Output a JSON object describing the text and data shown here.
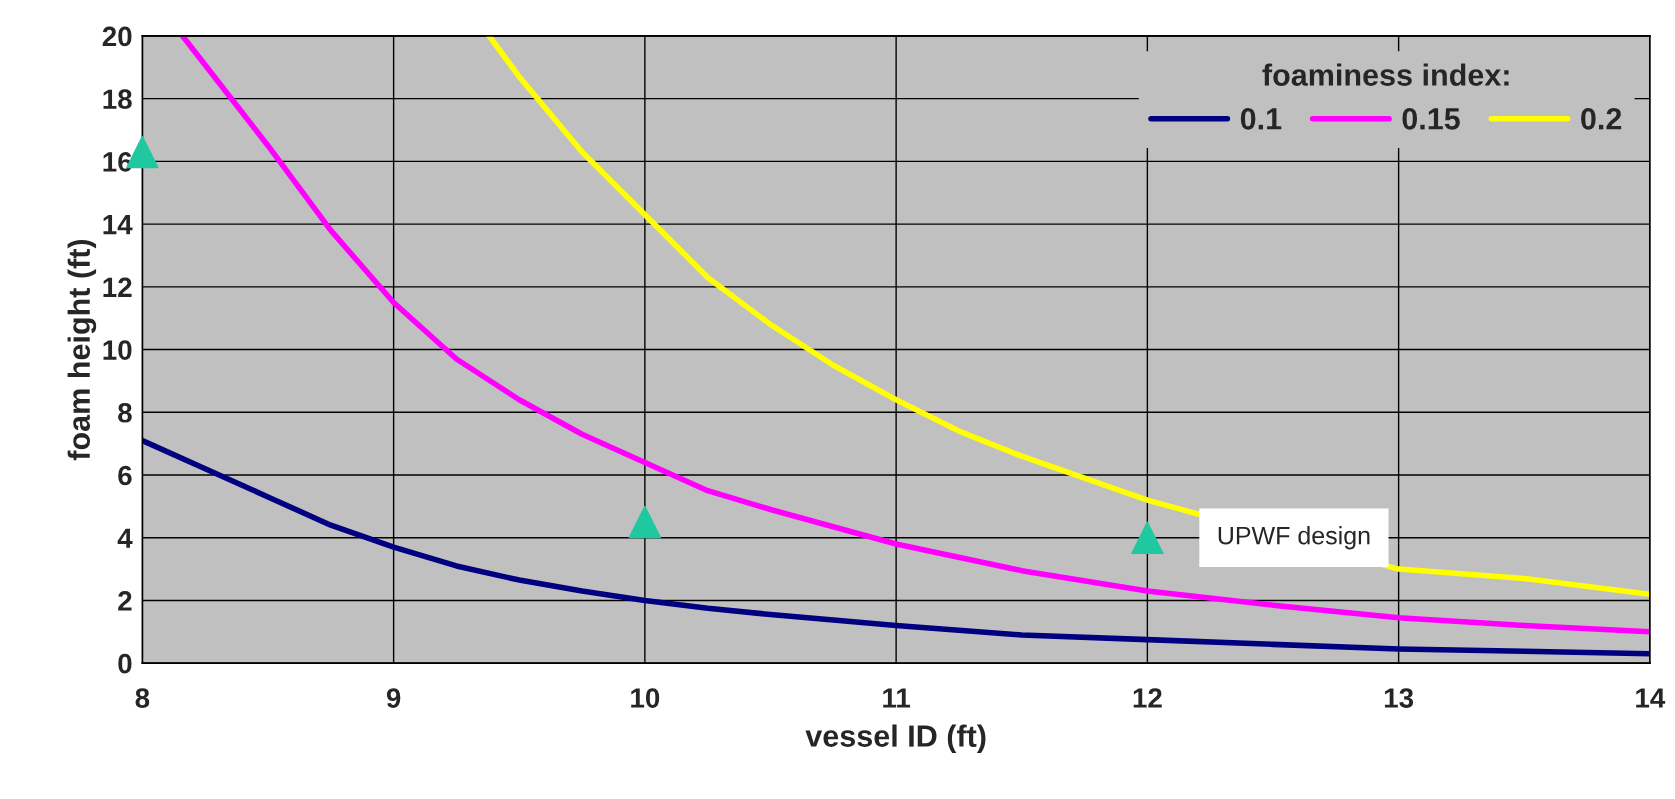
{
  "chart_data": {
    "type": "line",
    "xlabel": "vessel ID (ft)",
    "ylabel": "foam height (ft)",
    "legend_title": "foaminess index:",
    "xlim": [
      8,
      14
    ],
    "xticks": [
      8,
      9,
      10,
      11,
      12,
      13,
      14
    ],
    "ylim": [
      0,
      20
    ],
    "yticks": [
      0,
      2,
      4,
      6,
      8,
      10,
      12,
      14,
      16,
      18,
      20
    ],
    "grid": true,
    "legend": "top right",
    "marker": "none",
    "line_style": "solid",
    "series": [
      {
        "name": "0.1",
        "color": "#000080",
        "x": [
          8,
          8.25,
          8.5,
          8.75,
          9,
          9.25,
          9.5,
          9.75,
          10,
          10.25,
          10.5,
          11,
          11.5,
          12,
          12.5,
          13,
          13.5,
          14
        ],
        "values": [
          7.1,
          6.2,
          5.3,
          4.4,
          3.7,
          3.1,
          2.65,
          2.3,
          2.0,
          1.75,
          1.55,
          1.2,
          0.9,
          0.75,
          0.6,
          0.45,
          0.38,
          0.3
        ]
      },
      {
        "name": "0.15",
        "color": "#ff00ff",
        "x": [
          8.16,
          8.5,
          8.75,
          9,
          9.25,
          9.5,
          9.75,
          10,
          10.25,
          10.5,
          11,
          11.5,
          12,
          12.5,
          13,
          13.5,
          14
        ],
        "values": [
          20,
          16.5,
          13.8,
          11.5,
          9.7,
          8.4,
          7.3,
          6.4,
          5.5,
          4.9,
          3.8,
          2.95,
          2.3,
          1.85,
          1.45,
          1.2,
          1.0
        ]
      },
      {
        "name": "0.2",
        "color": "#ffff00",
        "x": [
          9.38,
          9.5,
          9.75,
          10,
          10.25,
          10.5,
          10.75,
          11,
          11.25,
          11.5,
          12,
          12.5,
          13,
          13.5,
          14
        ],
        "values": [
          20,
          18.7,
          16.3,
          14.3,
          12.3,
          10.8,
          9.5,
          8.4,
          7.4,
          6.6,
          5.2,
          null,
          3.0,
          2.7,
          2.2
        ]
      },
      {
        "type": "scatter",
        "marker": "triangle",
        "color": "#20c8a0",
        "x": [
          8,
          10,
          12
        ],
        "values": [
          16.3,
          4.5,
          4.0
        ]
      }
    ],
    "annotations": [
      {
        "text": "UPWF design",
        "x": 12,
        "y": 4.0
      }
    ]
  }
}
